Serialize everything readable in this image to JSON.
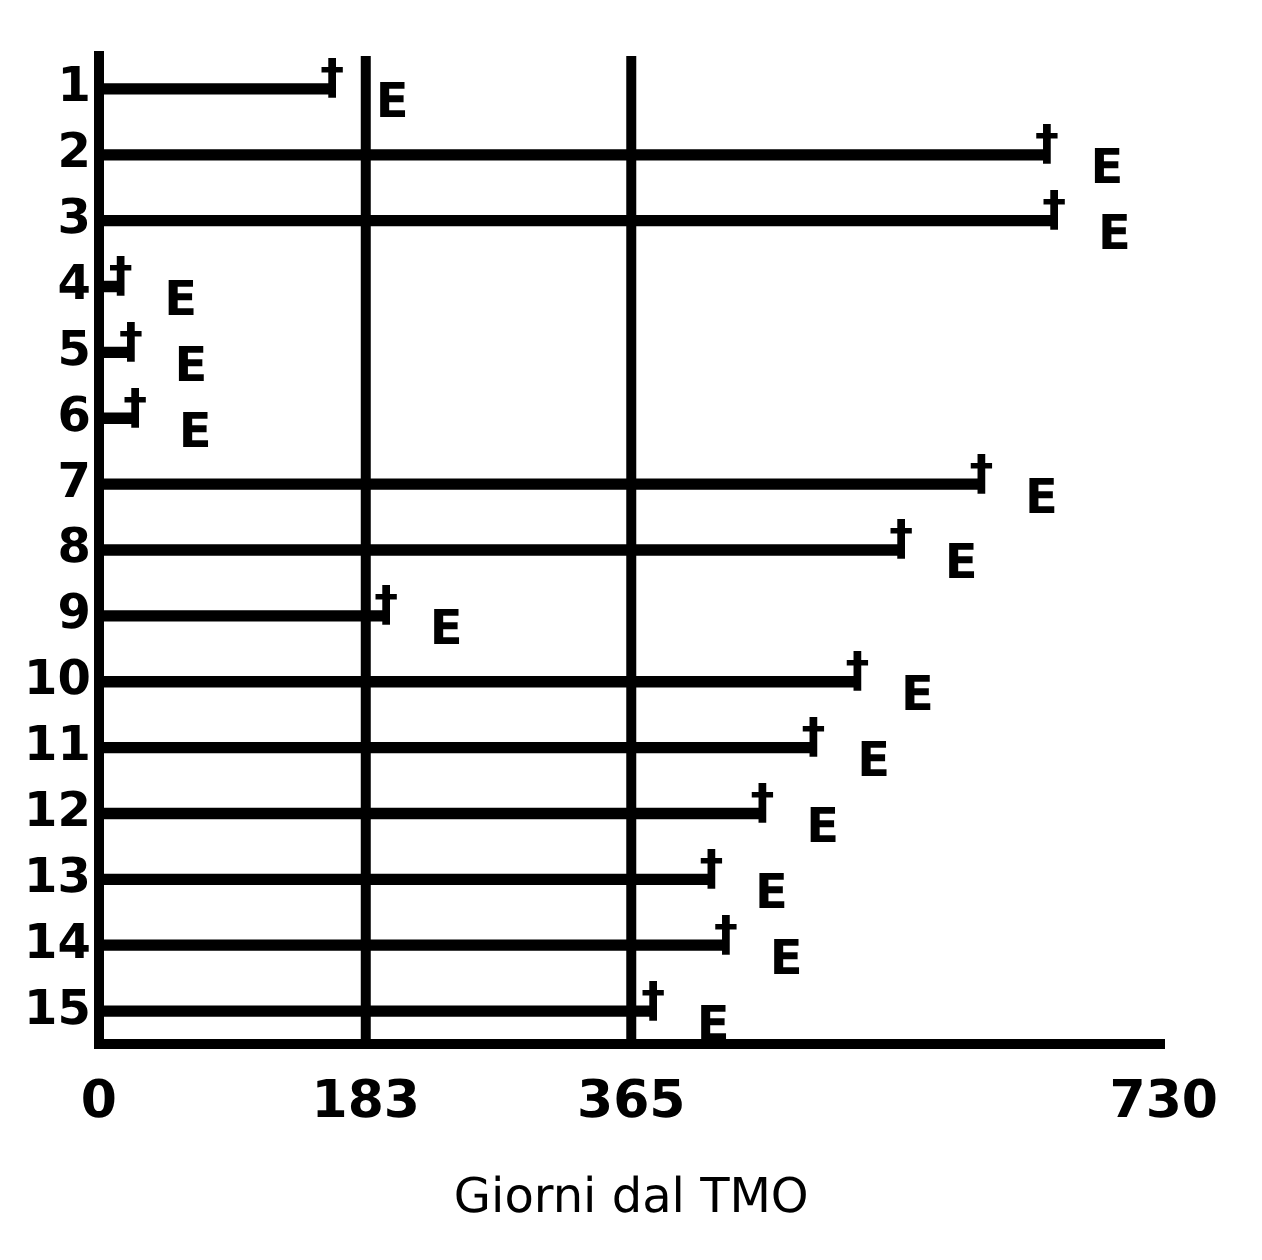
{
  "chart_data": {
    "type": "bar",
    "orientation": "horizontal",
    "xlabel": "Giorni dal TMO",
    "categories": [
      "1",
      "2",
      "3",
      "4",
      "5",
      "6",
      "7",
      "8",
      "9",
      "10",
      "11",
      "12",
      "13",
      "14",
      "15"
    ],
    "values": [
      160,
      650,
      655,
      15,
      22,
      25,
      605,
      550,
      197,
      520,
      490,
      455,
      420,
      430,
      380
    ],
    "color": "#000000",
    "xlim": [
      0,
      730
    ],
    "xticks": [
      0,
      183,
      365,
      730
    ],
    "grid": false,
    "legend": false,
    "ref_lines": [
      {
        "axis": "x",
        "value": 183,
        "color": "#000000"
      },
      {
        "axis": "x",
        "value": 365,
        "color": "#000000"
      }
    ],
    "annotations": [
      {
        "text": "†",
        "x": 160,
        "y": "1"
      },
      {
        "text": "E",
        "x": 160,
        "y": "1"
      },
      {
        "text": "†",
        "x": 650,
        "y": "2"
      },
      {
        "text": "E",
        "x": 650,
        "y": "2"
      },
      {
        "text": "†",
        "x": 655,
        "y": "3"
      },
      {
        "text": "E",
        "x": 655,
        "y": "3"
      },
      {
        "text": "†",
        "x": 15,
        "y": "4"
      },
      {
        "text": "E",
        "x": 15,
        "y": "4"
      },
      {
        "text": "†",
        "x": 22,
        "y": "5"
      },
      {
        "text": "E",
        "x": 22,
        "y": "5"
      },
      {
        "text": "†",
        "x": 25,
        "y": "6"
      },
      {
        "text": "E",
        "x": 25,
        "y": "6"
      },
      {
        "text": "†",
        "x": 605,
        "y": "7"
      },
      {
        "text": "E",
        "x": 605,
        "y": "7"
      },
      {
        "text": "†",
        "x": 550,
        "y": "8"
      },
      {
        "text": "E",
        "x": 550,
        "y": "8"
      },
      {
        "text": "†",
        "x": 197,
        "y": "9"
      },
      {
        "text": "E",
        "x": 197,
        "y": "9"
      },
      {
        "text": "†",
        "x": 520,
        "y": "10"
      },
      {
        "text": "E",
        "x": 520,
        "y": "10"
      },
      {
        "text": "†",
        "x": 490,
        "y": "11"
      },
      {
        "text": "E",
        "x": 490,
        "y": "11"
      },
      {
        "text": "†",
        "x": 455,
        "y": "12"
      },
      {
        "text": "E",
        "x": 455,
        "y": "12"
      },
      {
        "text": "†",
        "x": 420,
        "y": "13"
      },
      {
        "text": "E",
        "x": 420,
        "y": "13"
      },
      {
        "text": "†",
        "x": 430,
        "y": "14"
      },
      {
        "text": "E",
        "x": 430,
        "y": "14"
      },
      {
        "text": "†",
        "x": 380,
        "y": "15"
      },
      {
        "text": "E",
        "x": 380,
        "y": "15"
      }
    ]
  }
}
